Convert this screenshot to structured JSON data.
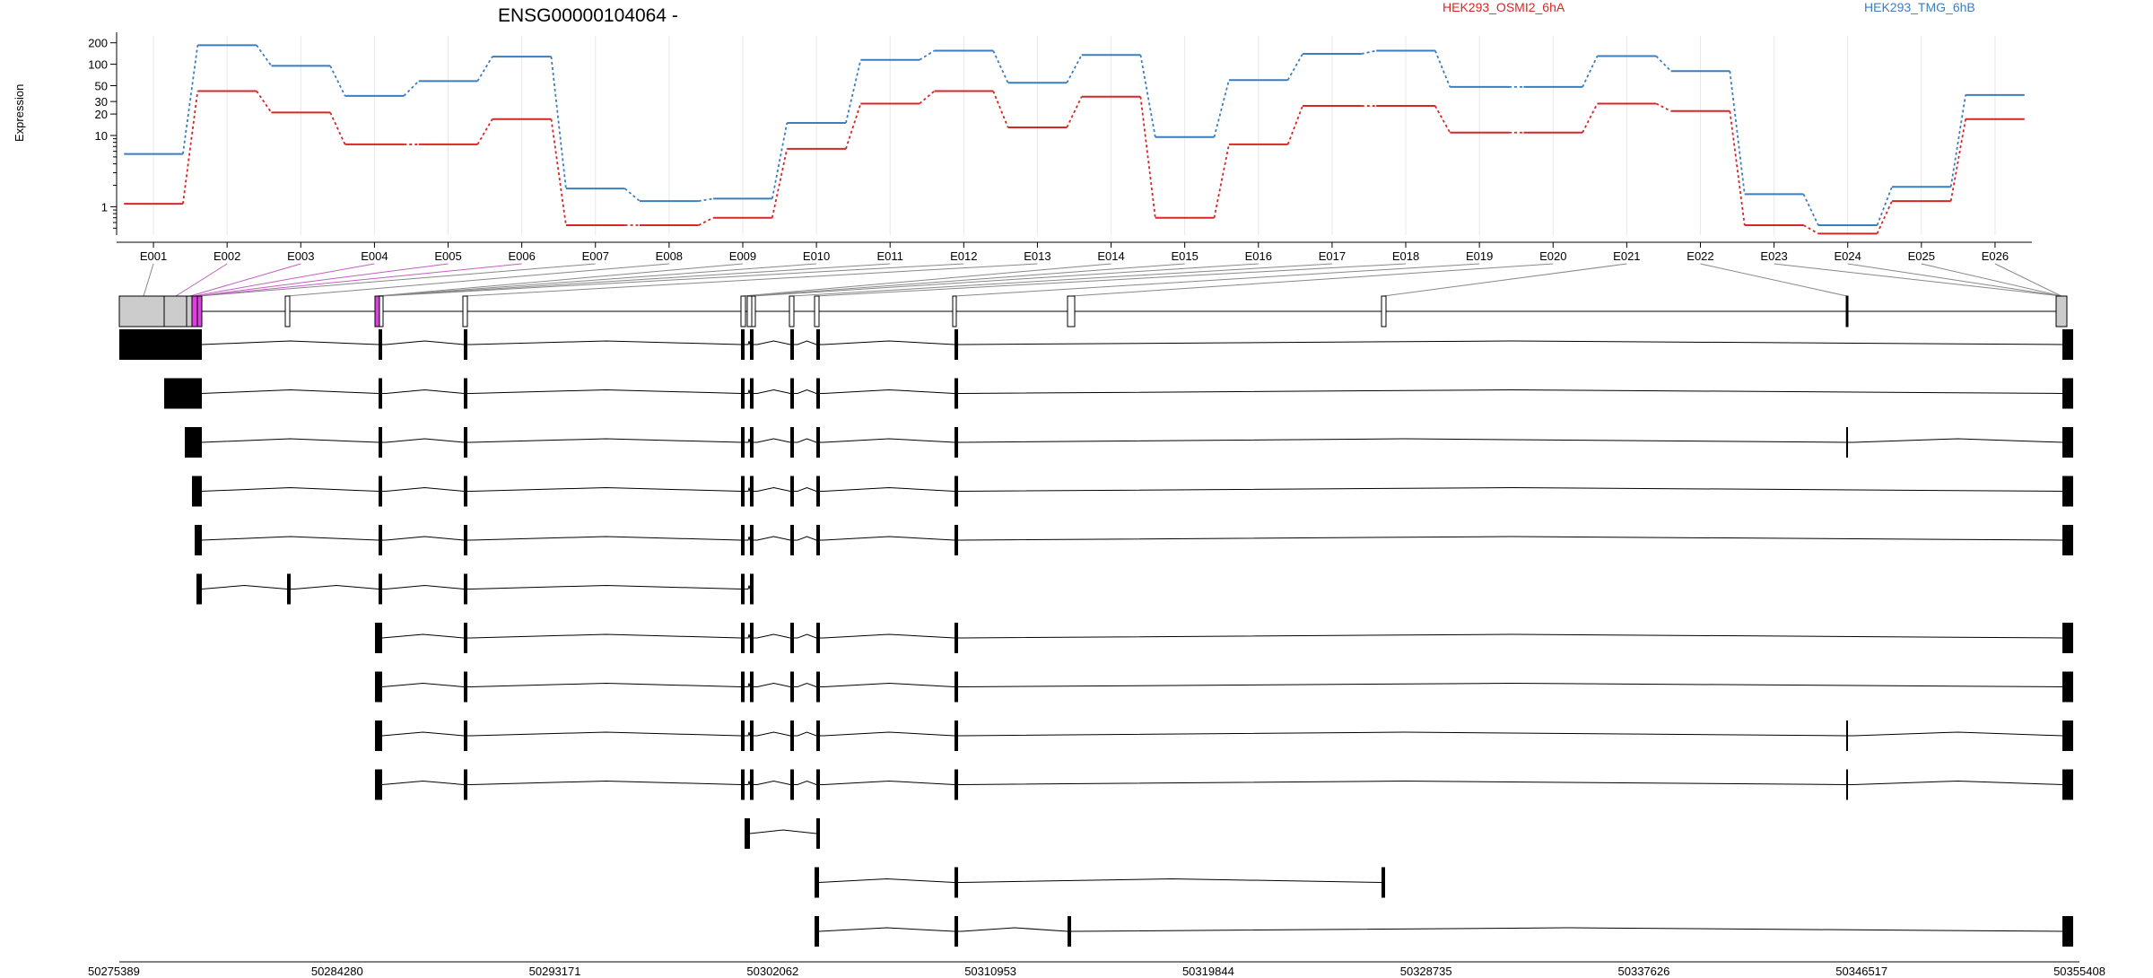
{
  "chart_data": {
    "type": "line",
    "title": "ENSG00000104064 -",
    "ylabel": "Expression",
    "xlabel": "",
    "y_scale": "log",
    "ylim": [
      0.4,
      250
    ],
    "y_ticks": [
      1,
      10,
      20,
      30,
      50,
      100,
      200
    ],
    "y_tick_labels": [
      "1",
      "10",
      "20",
      "30",
      "50",
      "100",
      "200"
    ],
    "grid": true,
    "legend_position": "top",
    "categories": [
      "E001",
      "E002",
      "E003",
      "E004",
      "E005",
      "E006",
      "E007",
      "E008",
      "E009",
      "E010",
      "E011",
      "E012",
      "E013",
      "E014",
      "E015",
      "E016",
      "E017",
      "E018",
      "E019",
      "E020",
      "E021",
      "E022",
      "E023",
      "E024",
      "E025",
      "E026"
    ],
    "series": [
      {
        "name": "HEK293_OSMI2_6hA",
        "color": "#d62728",
        "values": [
          1.1,
          42,
          21,
          7.5,
          7.5,
          17,
          0.55,
          0.55,
          0.7,
          6.5,
          28,
          42,
          13,
          35,
          0.7,
          7.5,
          26,
          26,
          11,
          11,
          28,
          22,
          0.55,
          0.42,
          1.2,
          17
        ]
      },
      {
        "name": "HEK293_TMG_6hB",
        "color": "#3a7ebf",
        "values": [
          5.5,
          185,
          95,
          36,
          58,
          128,
          1.8,
          1.2,
          1.3,
          15,
          115,
          155,
          55,
          135,
          9.5,
          60,
          140,
          155,
          48,
          48,
          130,
          80,
          1.5,
          0.55,
          1.9,
          37
        ]
      }
    ]
  },
  "gene_model": {
    "exon_labels": [
      "E001",
      "E002",
      "E003",
      "E004",
      "E005",
      "E006",
      "E007",
      "E008",
      "E009",
      "E010",
      "E011",
      "E012",
      "E013",
      "E014",
      "E015",
      "E016",
      "E017",
      "E018",
      "E019",
      "E020",
      "E021",
      "E022",
      "E023",
      "E024",
      "E025",
      "E026"
    ],
    "exon_positions": [
      50275389,
      50278300,
      50279000,
      50279240,
      50279310,
      50279380,
      50282800,
      50285400,
      50289000,
      50300350,
      50300700,
      50301000,
      50302500,
      50303200,
      50310953,
      50315700,
      50328735,
      50346517,
      50355200,
      50355408,
      50299000,
      50299200,
      50299400,
      50299600,
      50299800,
      50300000
    ],
    "highlight_color": "#e040e0",
    "coordinate_ticks": [
      "50275389",
      "50284280",
      "50293171",
      "50302062",
      "50310953",
      "50319844",
      "50328735",
      "50337626",
      "50346517",
      "50355408"
    ]
  }
}
